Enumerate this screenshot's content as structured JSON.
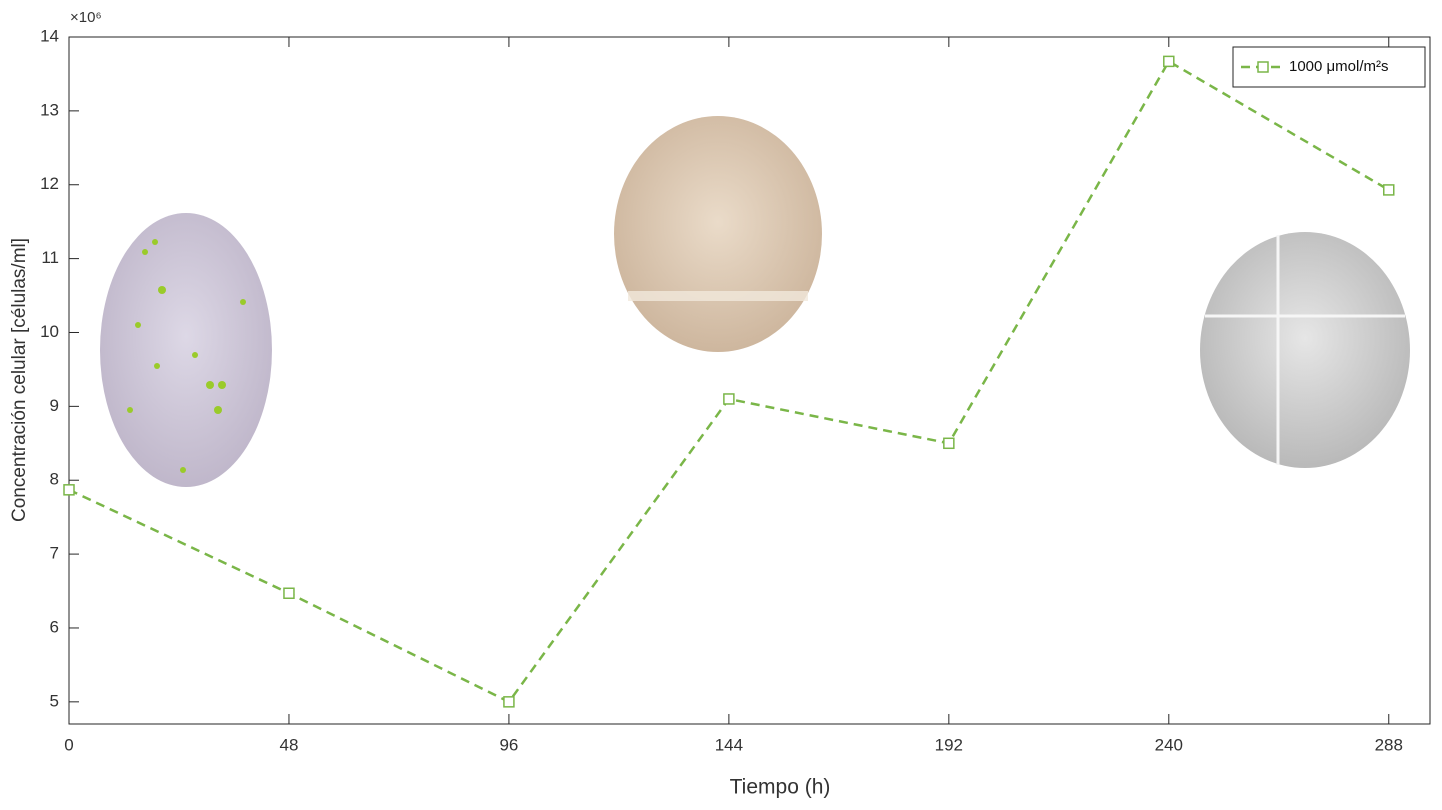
{
  "chart_data": {
    "type": "line",
    "x_label": "Tiempo (h)",
    "y_label": "Concentración celular [células/ml]",
    "y_multiplier": "×10⁶",
    "x": [
      0,
      48,
      96,
      144,
      192,
      240,
      288
    ],
    "series": [
      {
        "name": "1000 μmol/m²s",
        "color": "#7ab648",
        "values": [
          7.87,
          6.47,
          5.0,
          9.1,
          8.5,
          13.67,
          11.93
        ]
      }
    ],
    "xlim": [
      0,
      297
    ],
    "ylim": [
      4.7,
      14
    ],
    "xticks": [
      0,
      48,
      96,
      144,
      192,
      240,
      288
    ],
    "yticks": [
      5,
      6,
      7,
      8,
      9,
      10,
      11,
      12,
      13,
      14
    ],
    "legend": "upper right"
  }
}
